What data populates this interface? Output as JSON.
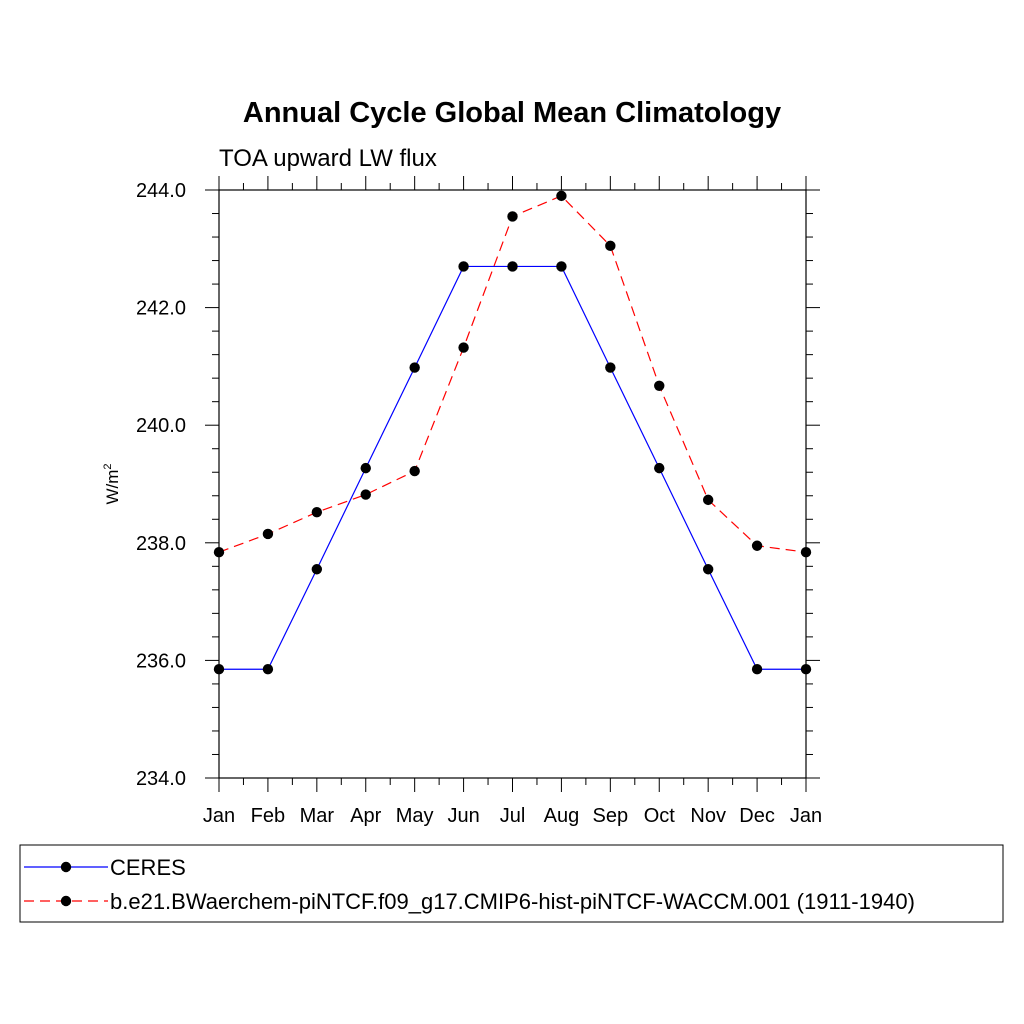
{
  "chart_data": {
    "type": "line",
    "title": "Annual Cycle Global Mean Climatology",
    "subtitle": "TOA upward LW flux",
    "ylabel": "W/m",
    "ylabel_superscript": "2",
    "ylim": [
      234.0,
      244.0
    ],
    "yticks": [
      "234.0",
      "236.0",
      "238.0",
      "240.0",
      "242.0",
      "244.0"
    ],
    "ytick_values": [
      234,
      236,
      238,
      240,
      242,
      244
    ],
    "categories": [
      "Jan",
      "Feb",
      "Mar",
      "Apr",
      "May",
      "Jun",
      "Jul",
      "Aug",
      "Sep",
      "Oct",
      "Nov",
      "Dec",
      "Jan"
    ],
    "series": [
      {
        "name": "CERES",
        "color": "#0000ff",
        "dash": "solid",
        "values": [
          235.85,
          235.85,
          237.55,
          239.27,
          240.98,
          242.7,
          242.7,
          242.7,
          240.98,
          239.27,
          237.55,
          235.85,
          235.85
        ]
      },
      {
        "name": "b.e21.BWaerchem-piNTCF.f09_g17.CMIP6-hist-piNTCF-WACCM.001 (1911-1940)",
        "color": "#ff0000",
        "dash": "dashed",
        "values": [
          237.84,
          238.15,
          238.52,
          238.82,
          239.22,
          241.32,
          243.55,
          243.9,
          243.05,
          240.67,
          238.73,
          237.95,
          237.84
        ]
      }
    ],
    "marker_color": "#000000"
  }
}
